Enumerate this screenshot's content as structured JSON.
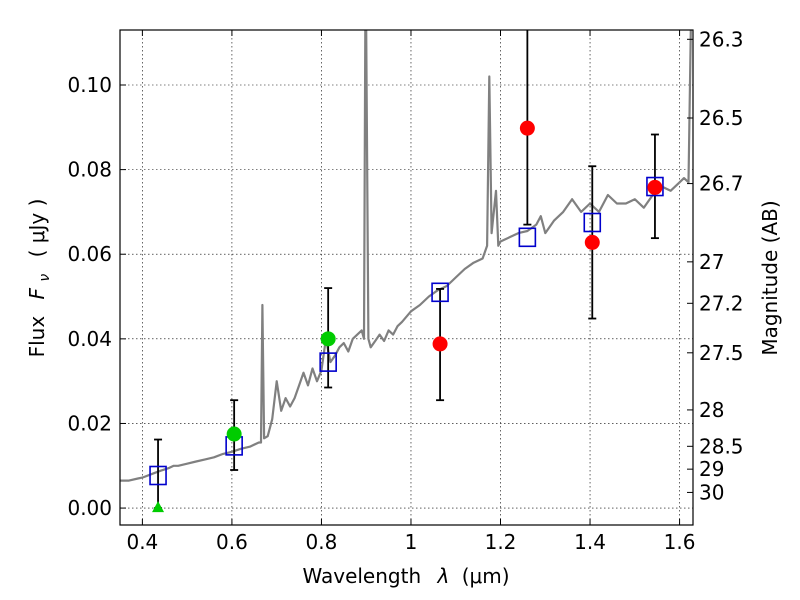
{
  "chart_data": {
    "type": "scatter",
    "xlabel_text": "Wavelength",
    "xlabel_symbol": "λ",
    "xlabel_unit": "(μm)",
    "ylabel_text": "Flux",
    "ylabel_symbol": "F",
    "ylabel_subscript": "ν",
    "ylabel_unit": "( μJy )",
    "y2label": "Magnitude (AB)",
    "xlim": [
      0.35,
      1.63
    ],
    "ylim": [
      -0.004,
      0.113
    ],
    "grid": true,
    "x_ticks": [
      0.4,
      0.6,
      0.8,
      1.0,
      1.2,
      1.4,
      1.6
    ],
    "x_tick_labels": [
      "0.4",
      "0.6",
      "0.8",
      "1",
      "1.2",
      "1.4",
      "1.6"
    ],
    "y_ticks": [
      0.0,
      0.02,
      0.04,
      0.06,
      0.08,
      0.1
    ],
    "y_tick_labels": [
      "0.00",
      "0.02",
      "0.04",
      "0.06",
      "0.08",
      "0.10"
    ],
    "right_ticks": [
      {
        "label": "26.3",
        "flux": 0.1108
      },
      {
        "label": "26.5",
        "flux": 0.0922
      },
      {
        "label": "26.7",
        "flux": 0.0767
      },
      {
        "label": "27",
        "flux": 0.0582
      },
      {
        "label": "27.2",
        "flux": 0.0484
      },
      {
        "label": "27.5",
        "flux": 0.0367
      },
      {
        "label": "28",
        "flux": 0.0232
      },
      {
        "label": "28.5",
        "flux": 0.0146
      },
      {
        "label": "29",
        "flux": 0.0092
      },
      {
        "label": "30",
        "flux": 0.0037
      }
    ],
    "model_spectrum": {
      "color": "#808080",
      "x": [
        0.35,
        0.37,
        0.39,
        0.4,
        0.42,
        0.44,
        0.46,
        0.47,
        0.48,
        0.5,
        0.52,
        0.54,
        0.56,
        0.58,
        0.6,
        0.62,
        0.64,
        0.66,
        0.665,
        0.668,
        0.672,
        0.68,
        0.69,
        0.7,
        0.71,
        0.72,
        0.73,
        0.74,
        0.75,
        0.76,
        0.77,
        0.78,
        0.79,
        0.8,
        0.81,
        0.82,
        0.83,
        0.84,
        0.85,
        0.86,
        0.87,
        0.88,
        0.89,
        0.895,
        0.898,
        0.9,
        0.905,
        0.91,
        0.92,
        0.93,
        0.94,
        0.95,
        0.96,
        0.97,
        0.98,
        1.0,
        1.02,
        1.04,
        1.06,
        1.08,
        1.1,
        1.12,
        1.14,
        1.16,
        1.17,
        1.175,
        1.18,
        1.19,
        1.195,
        1.2,
        1.22,
        1.24,
        1.26,
        1.28,
        1.29,
        1.3,
        1.32,
        1.34,
        1.36,
        1.38,
        1.4,
        1.42,
        1.44,
        1.46,
        1.48,
        1.5,
        1.52,
        1.54,
        1.56,
        1.58,
        1.6,
        1.61,
        1.62,
        1.625
      ],
      "y": [
        0.0065,
        0.0065,
        0.007,
        0.0072,
        0.008,
        0.0088,
        0.0095,
        0.01,
        0.01,
        0.0105,
        0.011,
        0.0115,
        0.012,
        0.0128,
        0.0133,
        0.014,
        0.0145,
        0.0155,
        0.0155,
        0.048,
        0.0165,
        0.017,
        0.021,
        0.03,
        0.023,
        0.026,
        0.024,
        0.026,
        0.029,
        0.032,
        0.029,
        0.033,
        0.03,
        0.0325,
        0.04,
        0.0345,
        0.036,
        0.038,
        0.039,
        0.037,
        0.04,
        0.041,
        0.042,
        0.04,
        0.113,
        0.113,
        0.04,
        0.038,
        0.0395,
        0.041,
        0.0395,
        0.042,
        0.041,
        0.043,
        0.044,
        0.0465,
        0.048,
        0.05,
        0.0515,
        0.0525,
        0.0545,
        0.0565,
        0.058,
        0.059,
        0.062,
        0.102,
        0.065,
        0.075,
        0.062,
        0.063,
        0.064,
        0.065,
        0.0655,
        0.067,
        0.069,
        0.065,
        0.068,
        0.07,
        0.073,
        0.07,
        0.072,
        0.07,
        0.074,
        0.072,
        0.072,
        0.073,
        0.071,
        0.074,
        0.076,
        0.075,
        0.077,
        0.078,
        0.077,
        0.113
      ]
    },
    "model_photometry": {
      "marker": "open-square",
      "color": "#0000cc",
      "x": [
        0.435,
        0.605,
        0.815,
        1.065,
        1.26,
        1.405,
        1.545
      ],
      "y": [
        0.0077,
        0.0147,
        0.0345,
        0.051,
        0.064,
        0.0675,
        0.076
      ]
    },
    "detections": [
      {
        "x": 0.605,
        "y": 0.0175,
        "yerr_low": 0.0085,
        "yerr_high": 0.008,
        "color": "#00cc00"
      },
      {
        "x": 0.815,
        "y": 0.04,
        "yerr_low": 0.0115,
        "yerr_high": 0.012,
        "color": "#00cc00"
      },
      {
        "x": 1.065,
        "y": 0.0388,
        "yerr_low": 0.0133,
        "yerr_high": 0.013,
        "color": "#ff0000"
      },
      {
        "x": 1.26,
        "y": 0.0898,
        "yerr_low": 0.0228,
        "yerr_high": 0.024,
        "color": "#ff0000"
      },
      {
        "x": 1.405,
        "y": 0.0628,
        "yerr_low": 0.018,
        "yerr_high": 0.018,
        "color": "#ff0000"
      },
      {
        "x": 1.545,
        "y": 0.0758,
        "yerr_low": 0.012,
        "yerr_high": 0.0125,
        "color": "#ff0000"
      }
    ],
    "upper_limits": [
      {
        "x": 0.435,
        "y": 0.0,
        "yerr_low": 0.0,
        "yerr_high": 0.0162,
        "color": "#00cc00",
        "marker": "triangle-up"
      }
    ]
  }
}
